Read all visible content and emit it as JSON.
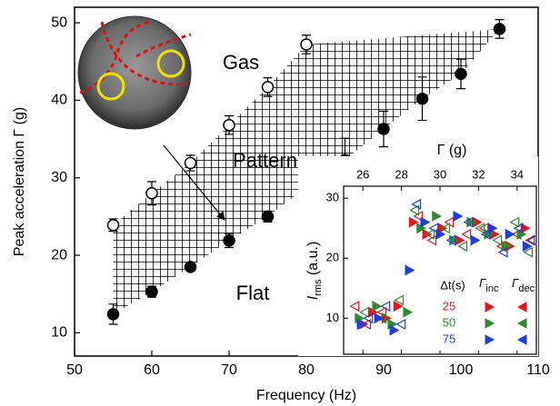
{
  "chart_data": {
    "type": "scatter",
    "xlabel": "Frequency (Hz)",
    "ylabel": "Peak acceleration Γ (g)",
    "xlim": [
      50,
      110
    ],
    "xticks": [
      50,
      60,
      70,
      80,
      90,
      100,
      110
    ],
    "ylim": [
      7,
      52
    ],
    "yticks": [
      10,
      20,
      30,
      40,
      50
    ],
    "annotations": [
      "Gas",
      "Patterns",
      "Flat"
    ],
    "series": [
      {
        "marker": "open",
        "color": "#000000",
        "x": [
          55,
          60,
          65,
          70,
          75,
          80
        ],
        "values": [
          23.9,
          28,
          31.9,
          36.8,
          41.7,
          47.2
        ],
        "errors": [
          0.8,
          1.5,
          1,
          1.2,
          1.2,
          1.2
        ]
      },
      {
        "marker": "filled",
        "color": "#000000",
        "x": [
          55,
          60,
          65,
          70,
          75,
          80,
          85,
          90,
          95,
          100,
          105
        ],
        "values": [
          12.4,
          15.3,
          18.5,
          21.9,
          25,
          28.8,
          32.3,
          36.3,
          40.2,
          43.4,
          49.2
        ],
        "errors": [
          1.3,
          0.7,
          0.5,
          0.9,
          0.7,
          0.5,
          2.8,
          2.3,
          2.8,
          1.9,
          1.2
        ]
      }
    ],
    "inset": {
      "type": "scatter",
      "xlabel": "Γ (g)",
      "ylabel": {
        "main": "I",
        "sub": "rms",
        "rest": " (a.u.)"
      },
      "xlim": [
        25,
        35
      ],
      "xticks": [
        26,
        28,
        30,
        32,
        34
      ],
      "ylim": [
        4,
        32
      ],
      "yticks": [
        10,
        20,
        30
      ],
      "legend_headers": [
        "Δt(s)",
        {
          "main": "Γ",
          "sub": "inc"
        },
        {
          "main": "Γ",
          "sub": "dec"
        }
      ],
      "series": [
        {
          "name": "25",
          "color": "#e8141b",
          "inc": {
            "x": [
              26,
              26.5,
              27.2,
              27.8,
              28.6,
              29.3,
              30.1,
              31,
              31.9,
              32.8,
              33.6,
              34.4
            ],
            "values": [
              9,
              11,
              10,
              12,
              26,
              24,
              25,
              23,
              26,
              24,
              22,
              25
            ]
          },
          "dec": {
            "x": [
              25.6,
              26.2,
              27,
              28.9,
              29.6,
              30.5,
              31.4,
              32.3,
              33.2,
              34,
              34.7
            ],
            "values": [
              12,
              9,
              11,
              27,
              23,
              26,
              24,
              25,
              22,
              24,
              23
            ]
          }
        },
        {
          "name": "50",
          "color": "#2e8b2e",
          "inc": {
            "x": [
              25.8,
              26.7,
              27.5,
              28.3,
              29,
              29.8,
              30.7,
              31.6,
              32.5,
              33.4,
              34.2
            ],
            "values": [
              10,
              12,
              9,
              11,
              25,
              27,
              23,
              26,
              24,
              22,
              24
            ]
          },
          "dec": {
            "x": [
              26.1,
              27,
              27.9,
              28.7,
              29.5,
              30.3,
              31.2,
              32.1,
              33,
              33.9,
              34.6
            ],
            "values": [
              11,
              10,
              13,
              28,
              24,
              25,
              22,
              25,
              23,
              26,
              21
            ]
          }
        },
        {
          "name": "75",
          "color": "#1f3fd6",
          "inc": {
            "x": [
              25.9,
              26.8,
              27.6,
              28.4,
              29.2,
              30,
              30.9,
              31.8,
              32.7,
              33.6,
              34.5
            ],
            "values": [
              9,
              10,
              8,
              18,
              26,
              24,
              27,
              23,
              25,
              24,
              22
            ]
          },
          "dec": {
            "x": [
              26.3,
              27.2,
              28,
              28.8,
              29.7,
              30.6,
              31.5,
              32.4,
              33.3,
              34.1,
              34.8
            ],
            "values": [
              10,
              12,
              9,
              29,
              25,
              23,
              26,
              24,
              21,
              25,
              23
            ]
          }
        }
      ]
    }
  }
}
